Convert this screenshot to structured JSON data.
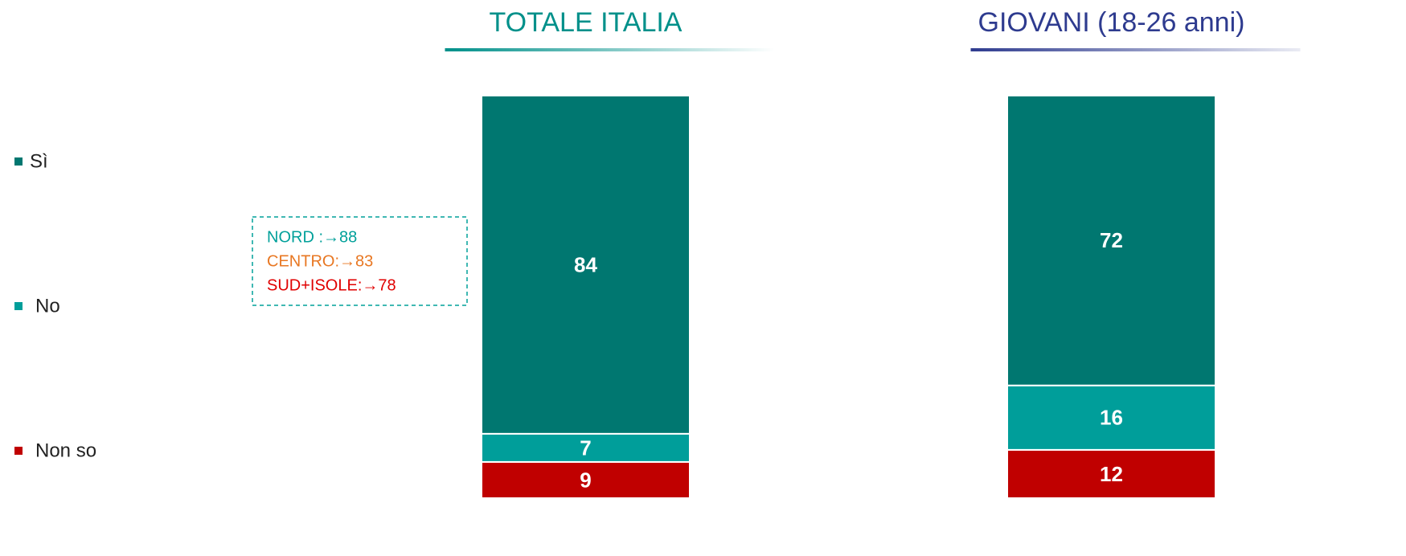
{
  "chart_data": {
    "type": "stacked_bar",
    "categories": [
      "TOTALE ITALIA",
      "GIOVANI (18-26 anni)"
    ],
    "category_colors": [
      "#00908a",
      "#2e3b8f"
    ],
    "series": [
      {
        "name": "Sì",
        "color": "#007770",
        "values": [
          84,
          72
        ]
      },
      {
        "name": "No",
        "color": "#009e9a",
        "values": [
          7,
          16
        ]
      },
      {
        "name": "Non so",
        "color": "#c00000",
        "values": [
          9,
          12
        ]
      }
    ],
    "ylim": [
      0,
      100
    ],
    "legend": "left",
    "annotations": [
      {
        "text": "NORD :→88",
        "color": "#00a09a"
      },
      {
        "text": "CENTRO:→83",
        "color": "#e87722"
      },
      {
        "text": "SUD+ISOLE:→78",
        "color": "#e00000"
      }
    ]
  }
}
